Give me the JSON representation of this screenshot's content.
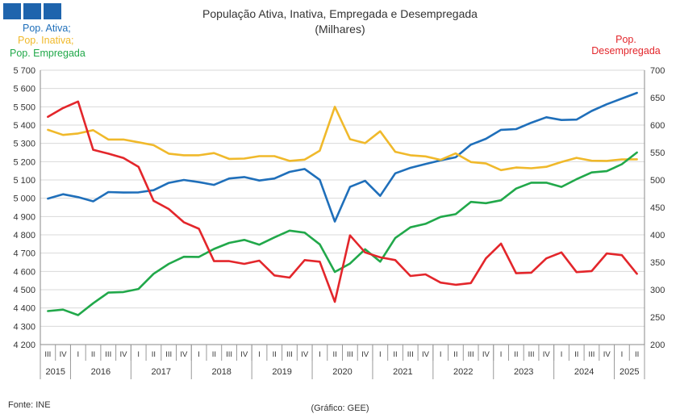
{
  "title": {
    "line1": "População Ativa, Inativa, Empregada e Desempregada",
    "line2": "(Milhares)"
  },
  "legend": {
    "ativa": "Pop. Ativa;",
    "inativa": "Pop. Inativa;",
    "empregada": "Pop. Empregada",
    "desempregada_line1": "Pop.",
    "desempregada_line2": "Desempregada"
  },
  "source": "Fonte: INE",
  "credit": "(Gráfico: GEE)",
  "colors": {
    "ativa": "#1f6fba",
    "inativa": "#f0b92b",
    "empregada": "#21a84a",
    "desempregada": "#e3262b",
    "logo": "#1e64ad"
  },
  "chart_data": {
    "type": "line",
    "xlabel": "",
    "ylabel": "",
    "y2label": "",
    "x_quarters": [
      "III",
      "IV",
      "I",
      "II",
      "III",
      "IV",
      "I",
      "II",
      "III",
      "IV",
      "I",
      "II",
      "III",
      "IV",
      "I",
      "II",
      "III",
      "IV",
      "I",
      "II",
      "III",
      "IV",
      "I",
      "II",
      "III",
      "IV",
      "I",
      "II",
      "III",
      "IV",
      "I",
      "II",
      "III",
      "IV",
      "I",
      "II",
      "III",
      "IV",
      "I",
      "II"
    ],
    "year_groups": [
      {
        "label": "2015",
        "count": 2
      },
      {
        "label": "2016",
        "count": 4
      },
      {
        "label": "2017",
        "count": 4
      },
      {
        "label": "2018",
        "count": 4
      },
      {
        "label": "2019",
        "count": 4
      },
      {
        "label": "2020",
        "count": 4
      },
      {
        "label": "2021",
        "count": 4
      },
      {
        "label": "2022",
        "count": 4
      },
      {
        "label": "2023",
        "count": 4
      },
      {
        "label": "2024",
        "count": 4
      },
      {
        "label": "2025",
        "count": 2
      }
    ],
    "y_left": {
      "min": 4200,
      "max": 5700,
      "step": 100,
      "tick_labels": [
        "4 200",
        "4 300",
        "4 400",
        "4 500",
        "4 600",
        "4 700",
        "4 800",
        "4 900",
        "5 000",
        "5 100",
        "5 200",
        "5 300",
        "5 400",
        "5 500",
        "5 600",
        "5 700"
      ]
    },
    "y_right": {
      "min": 200,
      "max": 700,
      "step": 50,
      "tick_labels": [
        "200",
        "250",
        "300",
        "350",
        "400",
        "450",
        "500",
        "550",
        "600",
        "650",
        "700"
      ]
    },
    "grid": "horizontal",
    "series": [
      {
        "name": "Pop. Ativa",
        "axis": "left",
        "color": "#1f6fba",
        "values": [
          4998,
          5022,
          5006,
          4983,
          5034,
          5031,
          5032,
          5044,
          5084,
          5100,
          5088,
          5073,
          5108,
          5116,
          5097,
          5108,
          5144,
          5160,
          5101,
          4873,
          5062,
          5095,
          5013,
          5136,
          5166,
          5187,
          5207,
          5224,
          5293,
          5325,
          5374,
          5378,
          5413,
          5443,
          5428,
          5430,
          5477,
          5514,
          5545,
          5576
        ]
      },
      {
        "name": "Pop. Inativa",
        "axis": "left",
        "color": "#f0b92b",
        "values": [
          5374,
          5346,
          5354,
          5372,
          5321,
          5321,
          5306,
          5290,
          5244,
          5235,
          5235,
          5247,
          5215,
          5217,
          5230,
          5230,
          5204,
          5211,
          5260,
          5500,
          5323,
          5301,
          5366,
          5254,
          5235,
          5229,
          5210,
          5245,
          5198,
          5190,
          5154,
          5168,
          5164,
          5172,
          5198,
          5221,
          5205,
          5204,
          5212,
          5213
        ]
      },
      {
        "name": "Pop. Empregada",
        "axis": "left",
        "color": "#21a84a",
        "values": [
          4383,
          4391,
          4361,
          4426,
          4484,
          4487,
          4504,
          4587,
          4641,
          4680,
          4679,
          4723,
          4756,
          4772,
          4746,
          4786,
          4823,
          4812,
          4748,
          4597,
          4643,
          4721,
          4653,
          4783,
          4841,
          4860,
          4898,
          4913,
          4980,
          4973,
          4989,
          5053,
          5085,
          5085,
          5062,
          5104,
          5141,
          5148,
          5186,
          5250
        ]
      },
      {
        "name": "Pop. Desempregada",
        "axis": "right",
        "color": "#e3262b",
        "values": [
          615,
          631,
          643,
          555,
          548,
          540,
          524,
          462,
          447,
          423,
          411,
          352,
          352,
          347,
          353,
          326,
          322,
          354,
          351,
          278,
          399,
          368,
          359,
          354,
          325,
          328,
          313,
          309,
          312,
          357,
          384,
          330,
          331,
          357,
          368,
          332,
          334,
          366,
          363,
          329
        ]
      }
    ]
  }
}
